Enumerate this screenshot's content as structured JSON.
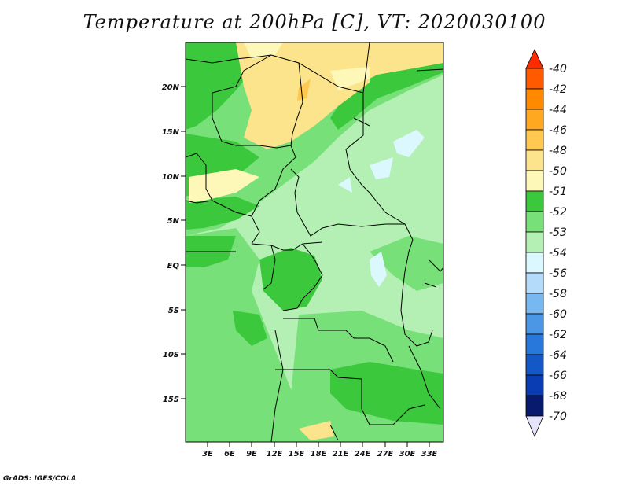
{
  "title": "Temperature at 200hPa [C], VT: 2020030100",
  "credit": "GrADS: IGES/COLA",
  "map": {
    "lat_labels": [
      "20N",
      "15N",
      "10N",
      "5N",
      "EQ",
      "5S",
      "10S",
      "15S"
    ],
    "lon_labels": [
      "3E",
      "6E",
      "9E",
      "12E",
      "15E",
      "18E",
      "21E",
      "24E",
      "27E",
      "30E",
      "33E"
    ]
  },
  "colorbar": {
    "levels": [
      "-40",
      "-42",
      "-44",
      "-46",
      "-48",
      "-50",
      "-51",
      "-52",
      "-53",
      "-54",
      "-56",
      "-58",
      "-60",
      "-62",
      "-64",
      "-66",
      "-68",
      "-70"
    ],
    "colors": {
      "c40": "#ff2a00",
      "c42": "#ff5a00",
      "c44": "#ff8a00",
      "c46": "#ffa820",
      "c48": "#ffc850",
      "c50": "#fbe48c",
      "c51": "#fdf8b8",
      "c52": "#3cc83c",
      "c53": "#78e078",
      "c54": "#b4f0b4",
      "c56": "#dcf8ff",
      "c58": "#b4dcfa",
      "c60": "#78b8f0",
      "c62": "#4c96e6",
      "c64": "#2878dc",
      "c66": "#1458c8",
      "c68": "#0a3cb4",
      "c70": "#081a6e"
    }
  }
}
